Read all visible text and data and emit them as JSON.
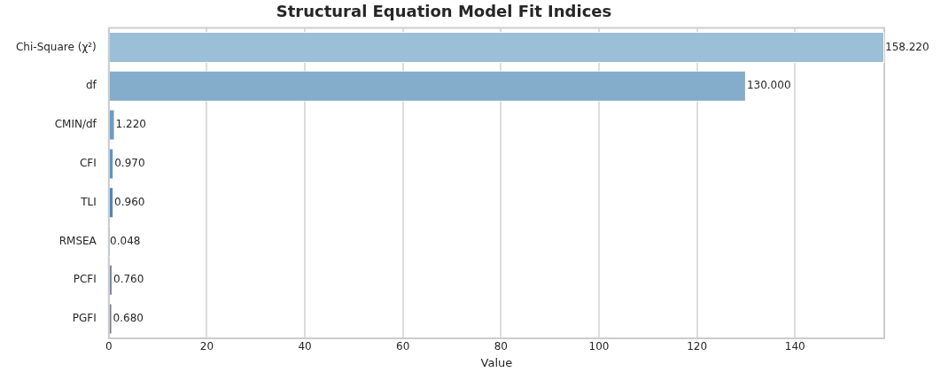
{
  "chart_data": {
    "type": "bar",
    "orientation": "horizontal",
    "title": "Structural Equation Model Fit Indices",
    "xlabel": "Value",
    "categories": [
      "Chi-Square (χ²)",
      "df",
      "CMIN/df",
      "CFI",
      "TLI",
      "RMSEA",
      "PCFI",
      "PGFI"
    ],
    "values": [
      158.22,
      130,
      1.22,
      0.97,
      0.96,
      0.048,
      0.76,
      0.68
    ],
    "value_labels": [
      "158.220",
      "130.000",
      "1.220",
      "0.970",
      "0.960",
      "0.048",
      "0.760",
      "0.680"
    ],
    "colors": [
      "#9bbfd6",
      "#84adcb",
      "#6b9dc6",
      "#5d95c3",
      "#4f88ba",
      "#6c8fb0",
      "#7d8ea2",
      "#7a7f88"
    ],
    "xlim": [
      0,
      158.22
    ],
    "xticks": [
      0,
      20,
      40,
      60,
      80,
      100,
      120,
      140
    ],
    "grid": "x",
    "legend": false
  }
}
